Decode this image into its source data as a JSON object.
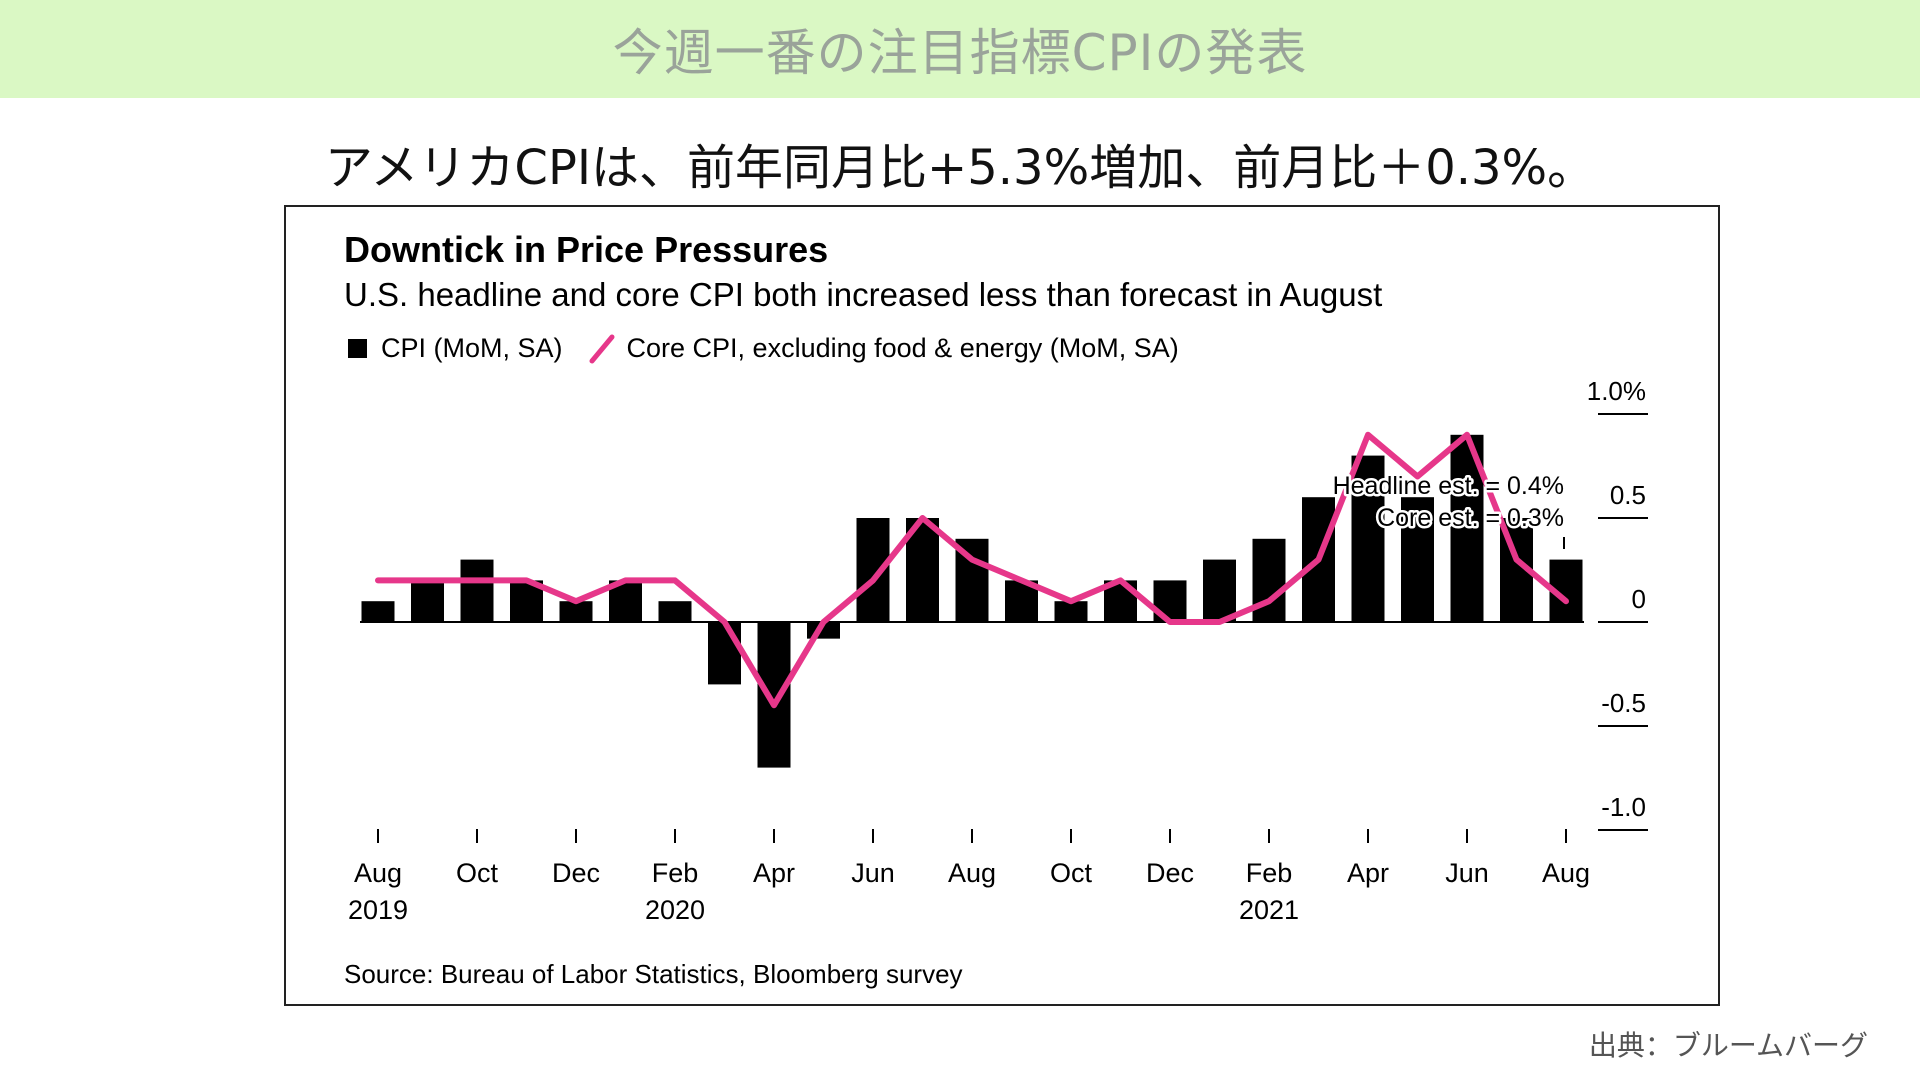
{
  "banner": {
    "title": "今週一番の注目指標CPIの発表"
  },
  "headline": "アメリカCPIは、前年同月比+5.3%増加、前月比＋0.3%。",
  "credit": "出典：ブルームバーグ",
  "colors": {
    "banner_bg": "#daf8c4",
    "bar": "#000000",
    "line": "#e6378a"
  },
  "chart_data": {
    "type": "bar",
    "title": "Downtick in Price Pressures",
    "subtitle": "U.S. headline and core CPI both increased less than forecast in August",
    "legend": [
      "CPI (MoM, SA)",
      "Core CPI, excluding food & energy (MoM, SA)"
    ],
    "legend_placement": "top-left",
    "source": "Source: Bureau of Labor Statistics, Bloomberg survey",
    "y_axis": {
      "position": "right",
      "ylim": [
        -1.0,
        1.0
      ],
      "ticks": [
        1.0,
        0.5,
        0,
        -0.5,
        -1.0
      ],
      "tick_labels": [
        "1.0%",
        "0.5",
        "0",
        "-0.5",
        "-1.0"
      ]
    },
    "x_tick_labels": [
      {
        "index": 0,
        "label": "Aug",
        "year": "2019"
      },
      {
        "index": 2,
        "label": "Oct",
        "year": ""
      },
      {
        "index": 4,
        "label": "Dec",
        "year": ""
      },
      {
        "index": 6,
        "label": "Feb",
        "year": "2020"
      },
      {
        "index": 8,
        "label": "Apr",
        "year": ""
      },
      {
        "index": 10,
        "label": "Jun",
        "year": ""
      },
      {
        "index": 12,
        "label": "Aug",
        "year": ""
      },
      {
        "index": 14,
        "label": "Oct",
        "year": ""
      },
      {
        "index": 16,
        "label": "Dec",
        "year": ""
      },
      {
        "index": 18,
        "label": "Feb",
        "year": "2021"
      },
      {
        "index": 20,
        "label": "Apr",
        "year": ""
      },
      {
        "index": 22,
        "label": "Jun",
        "year": ""
      },
      {
        "index": 24,
        "label": "Aug",
        "year": ""
      }
    ],
    "categories": [
      "2019-08",
      "2019-09",
      "2019-10",
      "2019-11",
      "2019-12",
      "2020-01",
      "2020-02",
      "2020-03",
      "2020-04",
      "2020-05",
      "2020-06",
      "2020-07",
      "2020-08",
      "2020-09",
      "2020-10",
      "2020-11",
      "2020-12",
      "2021-01",
      "2021-02",
      "2021-03",
      "2021-04",
      "2021-05",
      "2021-06",
      "2021-07",
      "2021-08"
    ],
    "series": [
      {
        "name": "CPI (MoM, SA)",
        "kind": "bar",
        "values": [
          0.1,
          0.2,
          0.3,
          0.2,
          0.1,
          0.2,
          0.1,
          -0.3,
          -0.7,
          -0.08,
          0.5,
          0.5,
          0.4,
          0.2,
          0.1,
          0.2,
          0.2,
          0.3,
          0.4,
          0.6,
          0.8,
          0.6,
          0.9,
          0.5,
          0.3
        ]
      },
      {
        "name": "Core CPI, excluding food & energy (MoM, SA)",
        "kind": "line",
        "values": [
          0.2,
          0.2,
          0.2,
          0.2,
          0.1,
          0.2,
          0.2,
          0.0,
          -0.4,
          0.0,
          0.2,
          0.5,
          0.3,
          0.2,
          0.1,
          0.2,
          0.0,
          0.0,
          0.1,
          0.3,
          0.9,
          0.7,
          0.9,
          0.3,
          0.1
        ]
      }
    ],
    "annotations": [
      "Headline est. = 0.4%",
      "Core est. = 0.3%"
    ]
  }
}
